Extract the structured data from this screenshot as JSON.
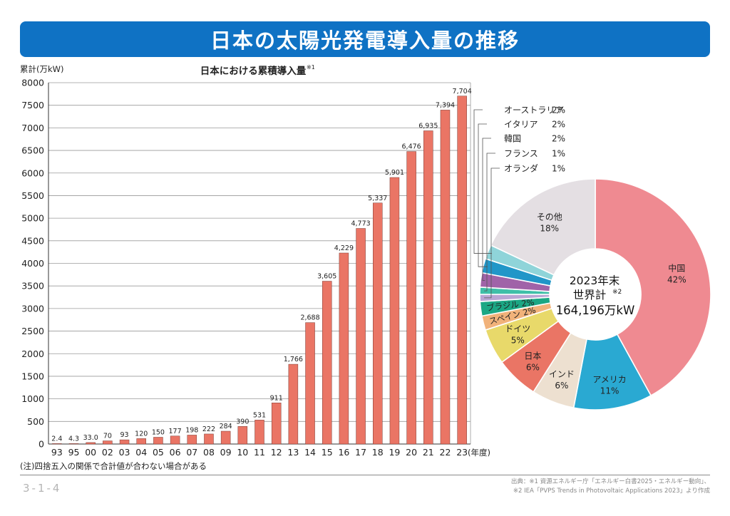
{
  "page_title": "日本の太陽光発電導入量の推移",
  "note": "(注)四捨五入の関係で合計値が合わない場合がある",
  "page_code": "3-1-4",
  "source_lines": [
    "出典：※1 資源エネルギー庁「エネルギー白書2025・エネルギー動向」、",
    "※2 IEA「PVPS Trends in Photovoltaic Applications 2023」より作成"
  ],
  "chart_data": [
    {
      "type": "bar",
      "title": "日本における累積導入量",
      "title_note": "※1",
      "ylabel": "累計(万kW)",
      "xlabel": "(年度)",
      "ylim": [
        0,
        8000
      ],
      "yticks": [
        0,
        500,
        1000,
        1500,
        2000,
        2500,
        3000,
        3500,
        4000,
        4500,
        5000,
        5500,
        6000,
        6500,
        7000,
        7500,
        8000
      ],
      "grid": true,
      "bar_color": "#ea7565",
      "categories": [
        "93",
        "95",
        "00",
        "02",
        "03",
        "04",
        "05",
        "06",
        "07",
        "08",
        "09",
        "10",
        "11",
        "12",
        "13",
        "14",
        "15",
        "16",
        "17",
        "18",
        "19",
        "20",
        "21",
        "22",
        "23"
      ],
      "values": [
        2.4,
        4.3,
        33.0,
        70,
        93,
        120,
        150,
        177,
        198,
        222,
        284,
        390,
        531,
        911,
        1766,
        2688,
        3605,
        4229,
        4773,
        5337,
        5901,
        6476,
        6935,
        7394,
        7704
      ],
      "data_labels": [
        "2.4",
        "4.3",
        "33.0",
        "70",
        "93",
        "120",
        "150",
        "177",
        "198",
        "222",
        "284",
        "390",
        "531",
        "911",
        "1,766",
        "2,688",
        "3,605",
        "4,229",
        "4,773",
        "5,337",
        "5,901",
        "6,476",
        "6,935",
        "7,394",
        "7,704"
      ]
    },
    {
      "type": "pie",
      "center_label": [
        "2023年末",
        "世界計",
        "164,196万kW"
      ],
      "center_note": "※2",
      "slices": [
        {
          "name": "中国",
          "value": 42,
          "label": "42%",
          "color": "#ef8a91"
        },
        {
          "name": "アメリカ",
          "value": 11,
          "label": "11%",
          "color": "#2aa9d2"
        },
        {
          "name": "インド",
          "value": 6,
          "label": "6%",
          "color": "#ede0d0"
        },
        {
          "name": "日本",
          "value": 6,
          "label": "6%",
          "color": "#ea7565"
        },
        {
          "name": "ドイツ",
          "value": 5,
          "label": "5%",
          "color": "#e8d96a"
        },
        {
          "name": "スペイン",
          "value": 2,
          "label": "2%",
          "color": "#f1b27a"
        },
        {
          "name": "ブラジル",
          "value": 2,
          "label": "2%",
          "color": "#1ba784"
        },
        {
          "name": "オランダ",
          "value": 1,
          "label": "1%",
          "color": "#b9a6d4"
        },
        {
          "name": "フランス",
          "value": 1,
          "label": "1%",
          "color": "#3fbfa8"
        },
        {
          "name": "韓国",
          "value": 2,
          "label": "2%",
          "color": "#a063a8"
        },
        {
          "name": "イタリア",
          "value": 2,
          "label": "2%",
          "color": "#2196c8"
        },
        {
          "name": "オーストラリア",
          "value": 2,
          "label": "2%",
          "color": "#8fd4d9"
        },
        {
          "name": "その他",
          "value": 18,
          "label": "18%",
          "color": "#e4dfe3"
        }
      ]
    }
  ]
}
